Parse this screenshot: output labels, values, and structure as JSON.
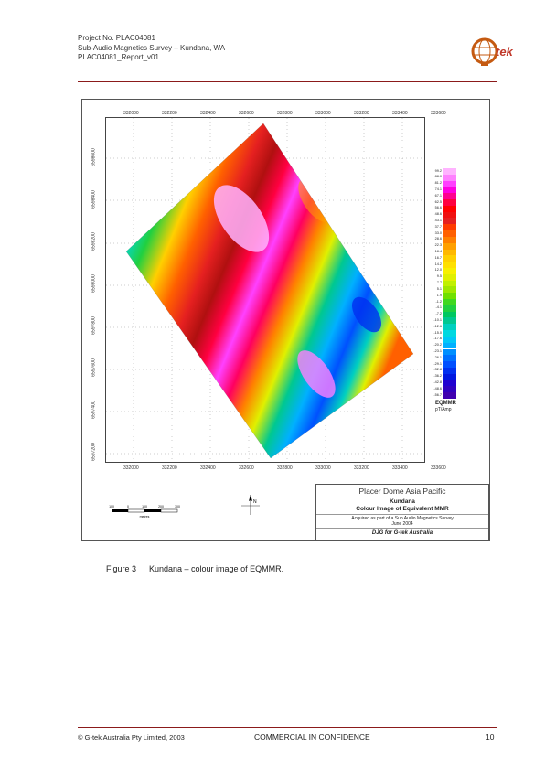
{
  "header": {
    "line1": "Project No.  PLAC04081",
    "line2": "Sub-Audio Magnetics Survey – Kundana, WA",
    "line3": "PLAC04081_Report_v01",
    "logo_text": "G-tek"
  },
  "figure": {
    "x_ticks": [
      "332000",
      "332200",
      "332400",
      "332600",
      "332800",
      "333000",
      "333200",
      "333400",
      "333600"
    ],
    "y_ticks": [
      "6598600",
      "6598400",
      "6598200",
      "6598000",
      "6597800",
      "6597600",
      "6597400",
      "6597200"
    ],
    "colorbar": {
      "title": "EQMMR",
      "unit": "pT/Amp",
      "labels": [
        "99.2",
        "88.0",
        "81.2",
        "74.1",
        "67.1",
        "62.5",
        "56.6",
        "48.6",
        "43.1",
        "37.7",
        "33.0",
        "28.6",
        "22.3",
        "18.4",
        "16.7",
        "14.2",
        "12.0",
        "9.5",
        "7.7",
        "5.1",
        "1.9",
        "-1.2",
        "-4.1",
        "-7.2",
        "-10.1",
        "-12.6",
        "-15.0",
        "-17.6",
        "-20.2",
        "-23.1",
        "-26.1",
        "-29.1",
        "-32.8",
        "-36.2",
        "-42.8",
        "-48.6",
        "-56.7"
      ],
      "colors": [
        "#ffb3ff",
        "#ff80ff",
        "#ff40ff",
        "#ff00e0",
        "#ff0090",
        "#ff0040",
        "#ff0000",
        "#f01010",
        "#e52020",
        "#ff3c00",
        "#ff6000",
        "#ff8000",
        "#ffa000",
        "#ffb800",
        "#ffd000",
        "#ffe000",
        "#f8f000",
        "#e0f000",
        "#c0f000",
        "#a0e800",
        "#70e000",
        "#40d820",
        "#20d040",
        "#00c860",
        "#00c890",
        "#00d0c0",
        "#00d8e0",
        "#00c8f8",
        "#00b0ff",
        "#0090ff",
        "#0070ff",
        "#0050ff",
        "#0030f0",
        "#0018e0",
        "#2000d0",
        "#3000c0",
        "#4000b0"
      ]
    },
    "infobox": {
      "company": "Placer Dome Asia Pacific",
      "title1": "Kundana",
      "title2": "Colour Image of Equivalent MMR",
      "note1": "Acquired as part of a Sub Audio Magnetics Survey",
      "note2": "June 2004",
      "credit": "DJG for G-tek Australia"
    },
    "scale": {
      "labels": [
        "100",
        "0",
        "100",
        "200",
        "300"
      ],
      "unit": "metres"
    },
    "north": "N"
  },
  "caption": {
    "number": "Figure 3",
    "text": "Kundana – colour image of EQMMR."
  },
  "footer": {
    "copyright": "© G-tek Australia Pty Limited, 2003",
    "confidential": "COMMERCIAL IN CONFIDENCE",
    "page": "10"
  }
}
